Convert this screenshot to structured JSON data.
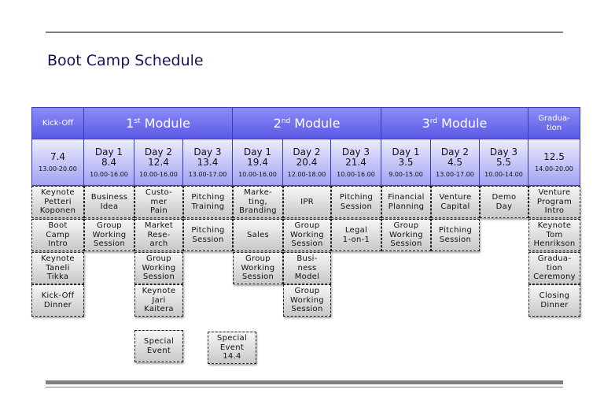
{
  "title": "Boot Camp Schedule",
  "colors": {
    "header_blue": "#5a5ae6",
    "date_blue": "#a2a2f2",
    "title_navy": "#14145e",
    "cell_gray": "#c8c8c8"
  },
  "headers": [
    {
      "label": "Kick-Off",
      "style": "small",
      "span": [
        0,
        0
      ]
    },
    {
      "num": "1",
      "sup": "st",
      "label": " Module",
      "style": "big",
      "span": [
        1,
        3
      ]
    },
    {
      "num": "2",
      "sup": "nd",
      "label": " Module",
      "style": "big",
      "span": [
        4,
        6
      ]
    },
    {
      "num": "3",
      "sup": "rd",
      "label": " Module",
      "style": "big",
      "span": [
        7,
        9
      ]
    },
    {
      "label": "Gradua-\ntion",
      "style": "small",
      "span": [
        10,
        10
      ]
    }
  ],
  "days": [
    {
      "day": "7.4",
      "time": "13.00-20.00"
    },
    {
      "day": "Day 1\n8.4",
      "time": "10.00-16.00"
    },
    {
      "day": "Day 2\n12.4",
      "time": "10.00-16.00"
    },
    {
      "day": "Day 3\n13.4",
      "time": "13.00-17.00"
    },
    {
      "day": "Day 1\n19.4",
      "time": "10.00-16.00"
    },
    {
      "day": "Day 2\n20.4",
      "time": "12.00-18.00"
    },
    {
      "day": "Day 3\n21.4",
      "time": "10.00-16.00"
    },
    {
      "day": "Day 1\n3.5",
      "time": "9.00-15.00"
    },
    {
      "day": "Day 2\n4.5",
      "time": "13.00-17.00"
    },
    {
      "day": "Day 3\n5.5",
      "time": "10.00-14.00"
    },
    {
      "day": "12.5",
      "time": "14.00-20.00"
    }
  ],
  "sessions": [
    [
      "Keynote\nPetteri\nKoponen",
      "Business\nIdea",
      "Custo-\nmer\nPain",
      "Pitching\nTraining",
      "Marke-\nting,\nBranding",
      "IPR",
      "Pitching\nSession",
      "Financial\nPlanning",
      "Venture\nCapital",
      "Demo\nDay",
      "Venture\nProgram\nIntro"
    ],
    [
      "Boot\nCamp\nIntro",
      "Group\nWorking\nSession",
      "Market\nRese-\narch",
      "Pitching\nSession",
      "Sales",
      "Group\nWorking\nSession",
      "Legal\n1-on-1",
      "Group\nWorking\nSession",
      "Pitching\nSession",
      "",
      "Keynote\nTom\nHenrikson"
    ],
    [
      "Keynote\nTaneli\nTikka",
      "",
      "Group\nWorking\nSession",
      "",
      "Group\nWorking\nSession",
      "Busi-\nness\nModel",
      "",
      "",
      "",
      "",
      "Gradua-\ntion\nCeremony"
    ],
    [
      "Kick-Off\nDinner",
      "",
      "Keynote\nJari\nKaitera",
      "",
      "",
      "Group\nWorking\nSession",
      "",
      "",
      "",
      "",
      "Closing\nDinner"
    ]
  ],
  "special_events": [
    "Special\nEvent",
    "Special\nEvent\n14.4"
  ]
}
